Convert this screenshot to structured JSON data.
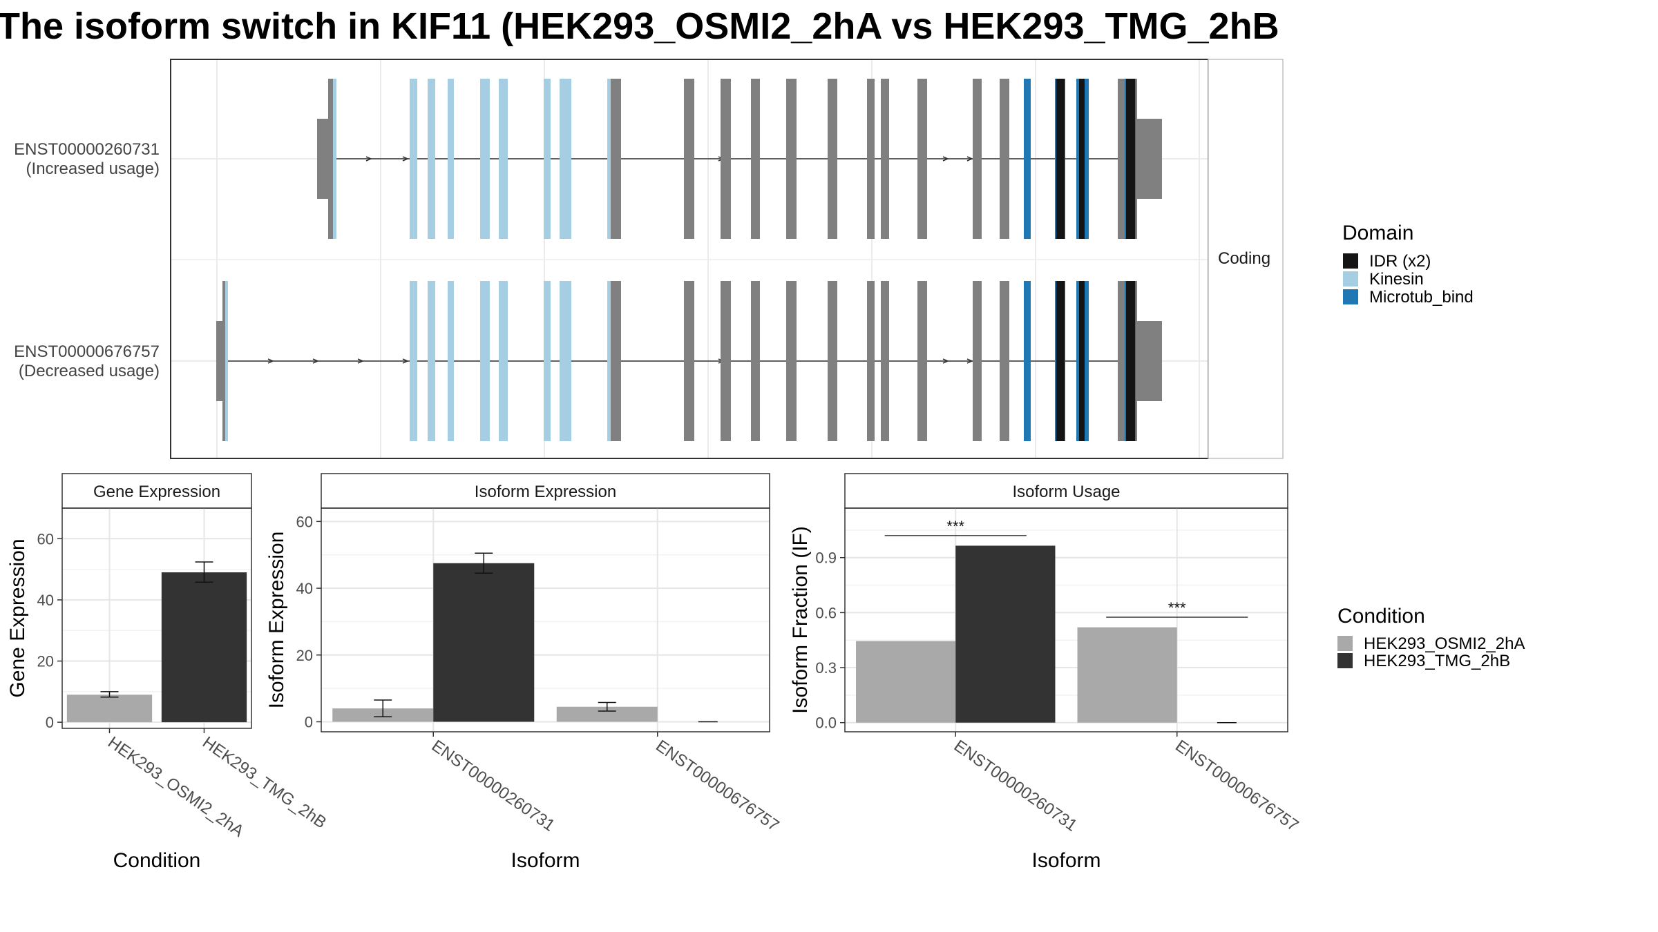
{
  "title": "The isoform switch in KIF11 (HEK293_OSMI2_2hA vs HEK293_TMG_2hB",
  "colors": {
    "idr": "#141414",
    "kinesin": "#a6cee3",
    "microtub_bind": "#1f78b4",
    "exon": "#808080",
    "cond_a": "#a9a9a9",
    "cond_b": "#333333"
  },
  "chart_data": [
    {
      "type": "gene-structure",
      "facet_label": "Coding",
      "legend_title": "Domain",
      "legend": [
        {
          "name": "IDR (x2)",
          "color_key": "idr"
        },
        {
          "name": "Kinesin",
          "color_key": "kinesin"
        },
        {
          "name": "Microtub_bind",
          "color_key": "microtub_bind"
        }
      ],
      "isoforms": [
        {
          "id": "ENST00000260731",
          "label": "(Increased usage)",
          "first_exon": "utr_start_late"
        },
        {
          "id": "ENST00000676757",
          "label": "(Decreased usage)",
          "first_exon": "utr_start_early"
        }
      ]
    },
    {
      "type": "bar",
      "title": "Gene Expression",
      "xlabel": "Condition",
      "ylabel": "Gene Expression",
      "ylim": [
        -2,
        70
      ],
      "yticks": [
        0,
        20,
        40,
        60
      ],
      "categories": [
        "HEK293_OSMI2_2hA",
        "HEK293_TMG_2hB"
      ],
      "values": [
        9.0,
        49.0
      ],
      "errors": [
        [
          8.2,
          10.0
        ],
        [
          45.8,
          52.4
        ]
      ]
    },
    {
      "type": "bar",
      "title": "Isoform Expression",
      "xlabel": "Isoform",
      "ylabel": "Isoform Expression",
      "ylim": [
        -3,
        64
      ],
      "yticks": [
        0,
        20,
        40,
        60
      ],
      "categories": [
        "ENST00000260731",
        "ENST00000676757"
      ],
      "series": [
        {
          "name": "HEK293_OSMI2_2hA",
          "values": [
            4.0,
            4.5
          ],
          "errors": [
            [
              1.5,
              6.5
            ],
            [
              3.2,
              5.8
            ]
          ]
        },
        {
          "name": "HEK293_TMG_2hB",
          "values": [
            47.5,
            0.0
          ],
          "errors": [
            [
              44.5,
              50.5
            ],
            [
              0.0,
              0.0
            ]
          ]
        }
      ]
    },
    {
      "type": "bar",
      "title": "Isoform Usage",
      "xlabel": "Isoform",
      "ylabel": "Isoform Fraction (IF)",
      "ylim": [
        -0.05,
        1.17
      ],
      "yticks": [
        0.0,
        0.3,
        0.6,
        0.9
      ],
      "ytick_labels": [
        "0.0",
        "0.3",
        "0.6",
        "0.9"
      ],
      "categories": [
        "ENST00000260731",
        "ENST00000676757"
      ],
      "series": [
        {
          "name": "HEK293_OSMI2_2hA",
          "values": [
            0.445,
            0.52
          ]
        },
        {
          "name": "HEK293_TMG_2hB",
          "values": [
            0.965,
            0.0
          ]
        }
      ],
      "annotations": [
        {
          "label": "***",
          "category_index": 0,
          "y": 1.02
        },
        {
          "label": "***",
          "category_index": 1,
          "y": 0.575
        }
      ]
    }
  ],
  "condition_legend": {
    "title": "Condition",
    "items": [
      {
        "name": "HEK293_OSMI2_2hA",
        "color_key": "cond_a"
      },
      {
        "name": "HEK293_TMG_2hB",
        "color_key": "cond_b"
      }
    ]
  }
}
